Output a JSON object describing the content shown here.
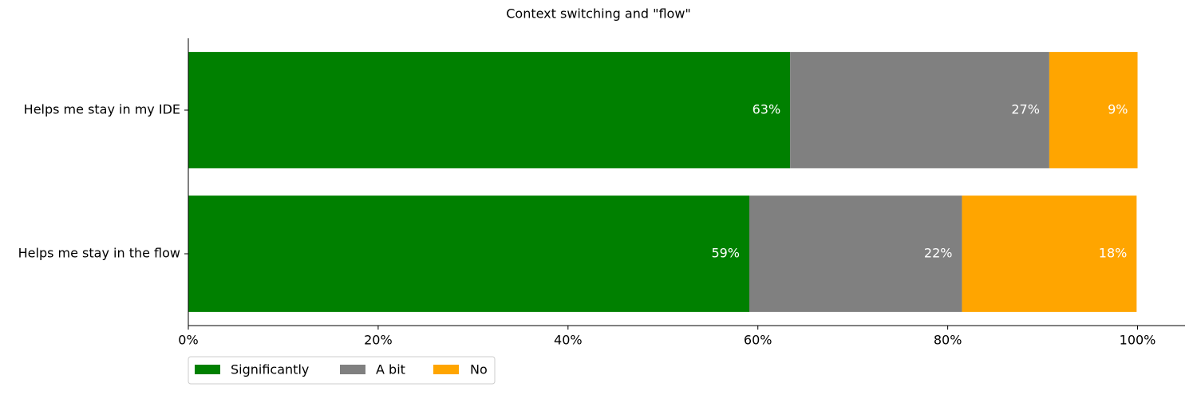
{
  "chart_data": {
    "type": "stacked-barh",
    "title": "Context switching and \"flow\"",
    "categories": [
      "Helps me stay in my IDE",
      "Helps me stay in the flow"
    ],
    "series": [
      {
        "name": "Significantly",
        "color": "#008000",
        "values": [
          63.4,
          59.1
        ],
        "value_labels": [
          "63%",
          "59%"
        ]
      },
      {
        "name": "A bit",
        "color": "#808080",
        "values": [
          27.3,
          22.4
        ],
        "value_labels": [
          "27%",
          "22%"
        ]
      },
      {
        "name": "No",
        "color": "#ffa500",
        "values": [
          9.3,
          18.4
        ],
        "value_labels": [
          "9%",
          "18%"
        ]
      }
    ],
    "xlim": [
      0,
      105
    ],
    "xticks": [
      {
        "value": 0,
        "label": "0%"
      },
      {
        "value": 20,
        "label": "20%"
      },
      {
        "value": 40,
        "label": "40%"
      },
      {
        "value": 60,
        "label": "60%"
      },
      {
        "value": 80,
        "label": "80%"
      },
      {
        "value": 100,
        "label": "100%"
      }
    ],
    "legend": "below-left"
  }
}
